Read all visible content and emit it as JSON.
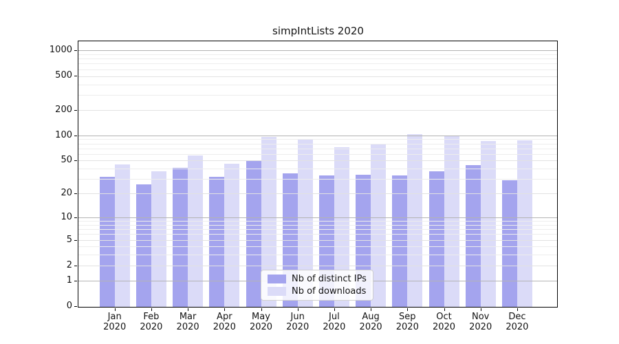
{
  "chart_data": {
    "type": "bar",
    "title": "simpIntLists 2020",
    "months": [
      "Jan",
      "Feb",
      "Mar",
      "Apr",
      "May",
      "Jun",
      "Jul",
      "Aug",
      "Sep",
      "Oct",
      "Nov",
      "Dec"
    ],
    "year": "2020",
    "series": [
      {
        "name": "Nb of distinct IPs",
        "color": "#a4a4ee",
        "values": [
          32,
          26,
          41,
          32,
          50,
          35,
          33,
          34,
          33,
          37,
          44,
          29
        ]
      },
      {
        "name": "Nb of downloads",
        "color": "#dbdbf8",
        "values": [
          45,
          37,
          58,
          46,
          95,
          88,
          72,
          78,
          104,
          97,
          85,
          87
        ]
      }
    ],
    "xlabel": "",
    "ylabel": "",
    "y_scale": "log10(1+x)",
    "yticks": [
      0,
      1,
      2,
      5,
      10,
      20,
      50,
      100,
      200,
      500,
      1000
    ],
    "ylim": [
      0,
      1290
    ],
    "grid": "on",
    "legend": {
      "location": "lower center",
      "entries": [
        "Nb of distinct IPs",
        "Nb of downloads"
      ]
    }
  },
  "colors": {
    "bar_distinct_ips": "#a4a4ee",
    "bar_downloads": "#dbdbf8",
    "grid_major": "#b3b3b3",
    "grid_medium": "#e2e2e2",
    "grid_minor": "#ededed",
    "axis": "#000000",
    "text": "#111111",
    "background": "#ffffff"
  }
}
